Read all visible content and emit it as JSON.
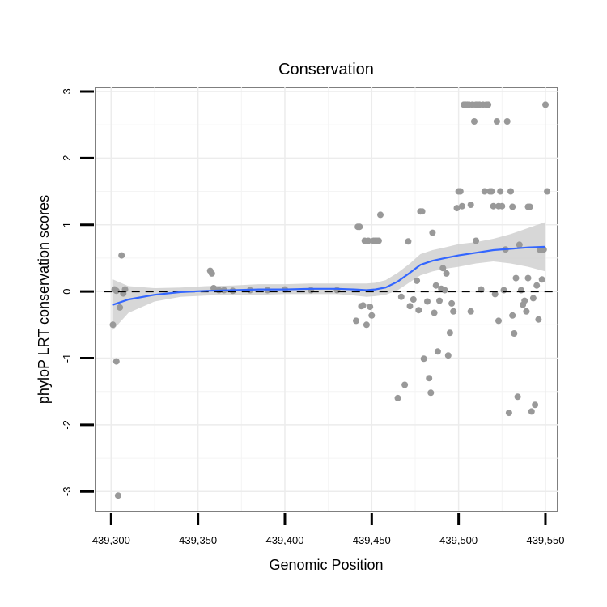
{
  "chart_data": {
    "type": "scatter",
    "title": "Conservation",
    "xlabel": "Genomic Position",
    "ylabel": "phyloP LRT conservation scores",
    "xlim": [
      439291,
      439557
    ],
    "ylim": [
      -3.3,
      3.06
    ],
    "x_ticks": [
      {
        "value": 439300,
        "label": "439,300"
      },
      {
        "value": 439350,
        "label": "439,350"
      },
      {
        "value": 439400,
        "label": "439,400"
      },
      {
        "value": 439450,
        "label": "439,450"
      },
      {
        "value": 439500,
        "label": "439,500"
      },
      {
        "value": 439550,
        "label": "439,550"
      }
    ],
    "y_ticks": [
      {
        "value": 3,
        "label": "3"
      },
      {
        "value": 2,
        "label": "2"
      },
      {
        "value": 1,
        "label": "1"
      },
      {
        "value": 0,
        "label": "0"
      },
      {
        "value": -1,
        "label": "-1"
      },
      {
        "value": -2,
        "label": "-2"
      },
      {
        "value": -3,
        "label": "-3"
      }
    ],
    "reference_line": {
      "y": 0,
      "style": "dashed",
      "color": "#000000"
    },
    "points_color": "#999999",
    "points": [
      [
        439301,
        -0.5
      ],
      [
        439302,
        0.03
      ],
      [
        439303,
        0.01
      ],
      [
        439303,
        -1.05
      ],
      [
        439304,
        -3.06
      ],
      [
        439305,
        -0.24
      ],
      [
        439306,
        0.54
      ],
      [
        439307,
        -0.03
      ],
      [
        439308,
        0.03
      ],
      [
        439357,
        0.31
      ],
      [
        439358,
        0.27
      ],
      [
        439359,
        0.05
      ],
      [
        439362,
        0.02
      ],
      [
        439365,
        0.02
      ],
      [
        439370,
        0.01
      ],
      [
        439380,
        0.02
      ],
      [
        439390,
        0.02
      ],
      [
        439400,
        0.03
      ],
      [
        439415,
        0.02
      ],
      [
        439430,
        0.02
      ],
      [
        439441,
        -0.44
      ],
      [
        439442,
        0.97
      ],
      [
        439443,
        0.97
      ],
      [
        439444,
        -0.22
      ],
      [
        439445,
        -0.21
      ],
      [
        439446,
        0.76
      ],
      [
        439447,
        -0.5
      ],
      [
        439448,
        0.76
      ],
      [
        439449,
        -0.23
      ],
      [
        439450,
        -0.36
      ],
      [
        439451,
        0.76
      ],
      [
        439452,
        0.76
      ],
      [
        439453,
        0.76
      ],
      [
        439454,
        0.76
      ],
      [
        439455,
        1.15
      ],
      [
        439465,
        -1.6
      ],
      [
        439467,
        -0.08
      ],
      [
        439469,
        -1.4
      ],
      [
        439471,
        0.75
      ],
      [
        439472,
        -0.22
      ],
      [
        439474,
        -0.12
      ],
      [
        439476,
        0.16
      ],
      [
        439477,
        -0.28
      ],
      [
        439478,
        1.2
      ],
      [
        439479,
        1.2
      ],
      [
        439480,
        -1.01
      ],
      [
        439482,
        -0.15
      ],
      [
        439483,
        -1.3
      ],
      [
        439484,
        -1.52
      ],
      [
        439485,
        0.88
      ],
      [
        439486,
        -0.32
      ],
      [
        439487,
        0.09
      ],
      [
        439488,
        -0.9
      ],
      [
        439489,
        -0.14
      ],
      [
        439490,
        0.04
      ],
      [
        439491,
        0.35
      ],
      [
        439492,
        0.02
      ],
      [
        439493,
        0.27
      ],
      [
        439494,
        -0.96
      ],
      [
        439495,
        -0.62
      ],
      [
        439496,
        -0.18
      ],
      [
        439497,
        -0.3
      ],
      [
        439499,
        1.25
      ],
      [
        439500,
        1.5
      ],
      [
        439501,
        1.5
      ],
      [
        439502,
        1.28
      ],
      [
        439503,
        2.8
      ],
      [
        439504,
        2.8
      ],
      [
        439505,
        2.8
      ],
      [
        439506,
        2.8
      ],
      [
        439507,
        1.3
      ],
      [
        439507,
        -0.3
      ],
      [
        439508,
        2.8
      ],
      [
        439509,
        2.55
      ],
      [
        439510,
        2.8
      ],
      [
        439510,
        0.76
      ],
      [
        439511,
        2.8
      ],
      [
        439512,
        2.8
      ],
      [
        439513,
        0.03
      ],
      [
        439514,
        2.8
      ],
      [
        439515,
        1.5
      ],
      [
        439516,
        2.8
      ],
      [
        439517,
        2.8
      ],
      [
        439518,
        1.5
      ],
      [
        439519,
        1.5
      ],
      [
        439520,
        1.28
      ],
      [
        439521,
        -0.04
      ],
      [
        439522,
        2.55
      ],
      [
        439523,
        1.28
      ],
      [
        439523,
        -0.44
      ],
      [
        439524,
        1.5
      ],
      [
        439525,
        1.28
      ],
      [
        439526,
        0.02
      ],
      [
        439527,
        0.63
      ],
      [
        439528,
        2.55
      ],
      [
        439529,
        -1.82
      ],
      [
        439530,
        1.5
      ],
      [
        439531,
        1.27
      ],
      [
        439531,
        -0.36
      ],
      [
        439532,
        -0.63
      ],
      [
        439533,
        0.2
      ],
      [
        439534,
        -1.58
      ],
      [
        439535,
        0.7
      ],
      [
        439536,
        0.02
      ],
      [
        439537,
        -0.2
      ],
      [
        439538,
        -0.14
      ],
      [
        439539,
        -0.3
      ],
      [
        439540,
        0.2
      ],
      [
        439540,
        1.27
      ],
      [
        439541,
        1.27
      ],
      [
        439542,
        -1.8
      ],
      [
        439543,
        -0.1
      ],
      [
        439544,
        -1.7
      ],
      [
        439545,
        0.09
      ],
      [
        439546,
        -0.42
      ],
      [
        439547,
        0.62
      ],
      [
        439548,
        0.18
      ],
      [
        439549,
        0.63
      ],
      [
        439550,
        2.8
      ],
      [
        439551,
        1.5
      ]
    ],
    "smooth": {
      "color": "#3366FF",
      "band_color": "#D0D0D0",
      "x": [
        439301,
        439310,
        439325,
        439340,
        439355,
        439370,
        439385,
        439400,
        439415,
        439430,
        439440,
        439447,
        439452,
        439458,
        439465,
        439472,
        439478,
        439485,
        439492,
        439500,
        439510,
        439520,
        439530,
        439540,
        439550
      ],
      "y": [
        -0.2,
        -0.12,
        -0.05,
        -0.01,
        0.01,
        0.02,
        0.03,
        0.03,
        0.04,
        0.04,
        0.03,
        0.02,
        0.03,
        0.06,
        0.15,
        0.28,
        0.4,
        0.46,
        0.5,
        0.54,
        0.58,
        0.62,
        0.64,
        0.66,
        0.67
      ],
      "lower": [
        -0.58,
        -0.32,
        -0.15,
        -0.08,
        -0.06,
        -0.05,
        -0.05,
        -0.04,
        -0.04,
        -0.04,
        -0.06,
        -0.08,
        -0.07,
        -0.05,
        0.02,
        0.14,
        0.24,
        0.3,
        0.34,
        0.37,
        0.42,
        0.45,
        0.42,
        0.37,
        0.3
      ],
      "upper": [
        0.18,
        0.08,
        0.05,
        0.06,
        0.08,
        0.09,
        0.11,
        0.11,
        0.12,
        0.12,
        0.12,
        0.12,
        0.13,
        0.17,
        0.28,
        0.42,
        0.56,
        0.62,
        0.66,
        0.71,
        0.74,
        0.79,
        0.86,
        0.95,
        1.04
      ]
    }
  }
}
